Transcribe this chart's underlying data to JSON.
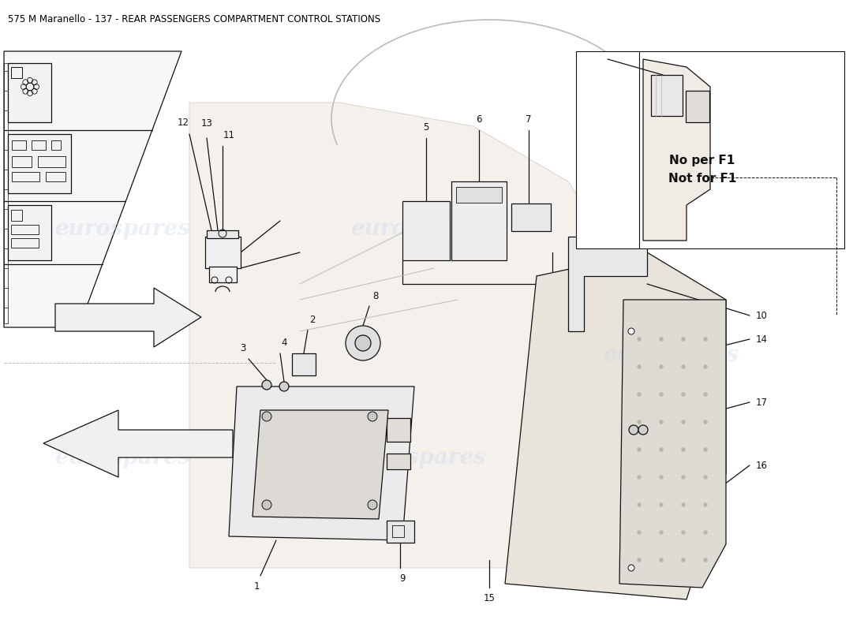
{
  "title": "575 M Maranello - 137 - REAR PASSENGERS COMPARTMENT CONTROL STATIONS",
  "title_fontsize": 8.5,
  "title_color": "#000000",
  "background_color": "#ffffff",
  "watermark_text": "eurospares",
  "note_text": "No per F1\nNot for F1"
}
